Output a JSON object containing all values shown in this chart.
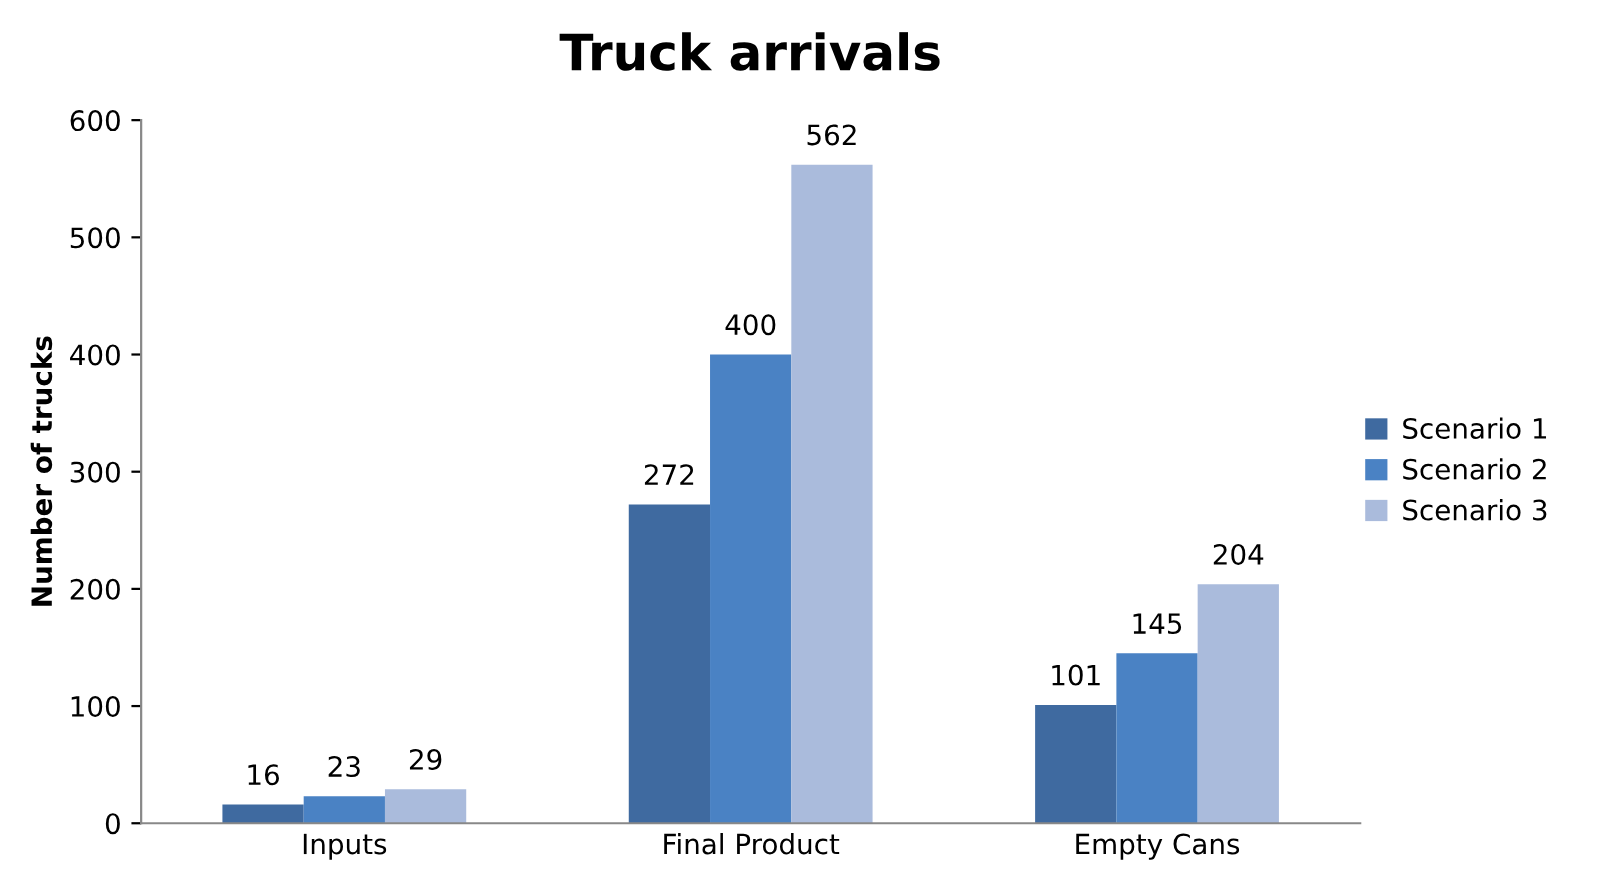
{
  "chart_data": {
    "type": "bar",
    "title": "Truck arrivals",
    "ylabel": "Number of trucks",
    "categories": [
      "Inputs",
      "Final Product",
      "Empty Cans"
    ],
    "series": [
      {
        "name": "Scenario 1",
        "color": "#3f6aa0",
        "values": [
          16,
          272,
          101
        ]
      },
      {
        "name": "Scenario 2",
        "color": "#4a82c4",
        "values": [
          23,
          400,
          145
        ]
      },
      {
        "name": "Scenario 3",
        "color": "#aabbdc",
        "values": [
          29,
          562,
          204
        ]
      }
    ],
    "ylim": [
      0,
      600
    ],
    "yticks": [
      0,
      100,
      200,
      300,
      400,
      500,
      600
    ],
    "grid": false,
    "legend": "right",
    "data_labels": true
  }
}
